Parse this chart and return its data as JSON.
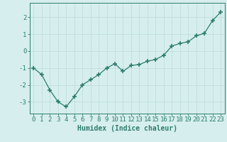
{
  "x": [
    0,
    1,
    2,
    3,
    4,
    5,
    6,
    7,
    8,
    9,
    10,
    11,
    12,
    13,
    14,
    15,
    16,
    17,
    18,
    19,
    20,
    21,
    22,
    23
  ],
  "y": [
    -1.0,
    -1.4,
    -2.3,
    -3.0,
    -3.3,
    -2.7,
    -2.0,
    -1.7,
    -1.4,
    -1.0,
    -0.75,
    -1.2,
    -0.85,
    -0.8,
    -0.6,
    -0.5,
    -0.25,
    0.3,
    0.45,
    0.55,
    0.9,
    1.05,
    1.8,
    2.3
  ],
  "line_color": "#2d7d6e",
  "marker": "+",
  "marker_size": 4,
  "marker_lw": 1.2,
  "background_color": "#d6eeee",
  "grid_color": "#c0dede",
  "xlabel": "Humidex (Indice chaleur)",
  "ylim": [
    -3.7,
    2.85
  ],
  "yticks": [
    -3,
    -2,
    -1,
    0,
    1,
    2
  ],
  "xlim": [
    -0.5,
    23.5
  ],
  "xticks": [
    0,
    1,
    2,
    3,
    4,
    5,
    6,
    7,
    8,
    9,
    10,
    11,
    12,
    13,
    14,
    15,
    16,
    17,
    18,
    19,
    20,
    21,
    22,
    23
  ],
  "label_fontsize": 7,
  "tick_fontsize": 6.5
}
